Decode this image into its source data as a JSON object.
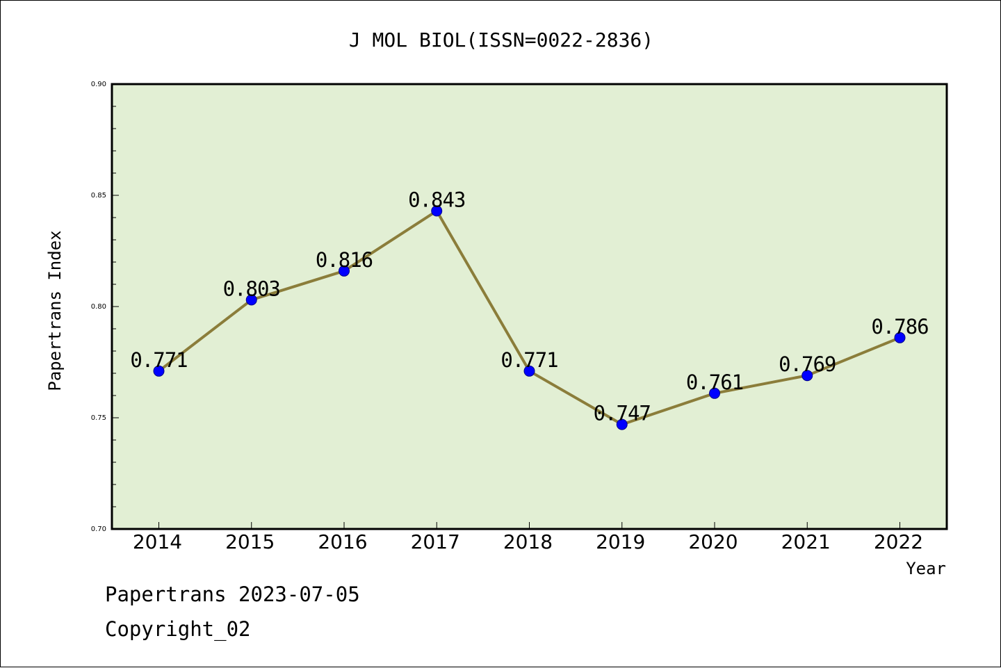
{
  "chart_data": {
    "type": "line",
    "title": "J MOL BIOL(ISSN=0022-2836)",
    "xlabel": "Year",
    "ylabel": "Papertrans Index",
    "categories": [
      "2014",
      "2015",
      "2016",
      "2017",
      "2018",
      "2019",
      "2020",
      "2021",
      "2022"
    ],
    "series": [
      {
        "values": [
          0.771,
          0.803,
          0.816,
          0.843,
          0.771,
          0.747,
          0.761,
          0.769,
          0.786
        ],
        "data_labels": [
          "0.771",
          "0.803",
          "0.816",
          "0.843",
          "0.771",
          "0.747",
          "0.761",
          "0.769",
          "0.786"
        ]
      }
    ],
    "ylim": [
      0.7,
      0.9
    ],
    "yticks": [
      0.7,
      0.75,
      0.8,
      0.85,
      0.9
    ],
    "ytick_labels": [
      "0.70",
      "0.75",
      "0.80",
      "0.85",
      "0.90"
    ],
    "grid": false,
    "colors": {
      "plot_background": "#e2efd4",
      "line": "#8b7d3a",
      "marker": "#0000ff",
      "marker_edge": "#00008b"
    }
  },
  "footer": {
    "line1": "Papertrans 2023-07-05",
    "line2": "Copyright_02"
  }
}
